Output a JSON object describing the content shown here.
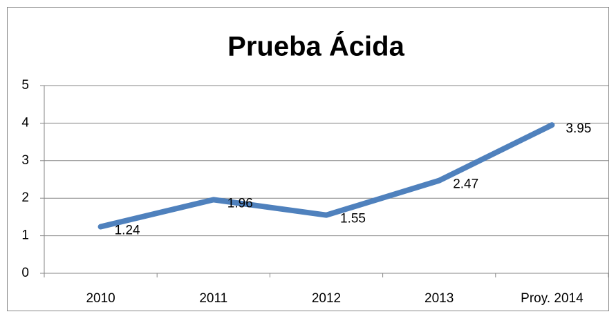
{
  "chart_data": {
    "type": "line",
    "title": "Prueba Ácida",
    "categories": [
      "2010",
      "2011",
      "2012",
      "2013",
      "Proy. 2014"
    ],
    "series": [
      {
        "name": "Prueba Ácida",
        "color": "#4f81bd",
        "values": [
          1.24,
          1.96,
          1.55,
          2.47,
          3.95
        ]
      }
    ],
    "ylim": [
      0,
      5
    ],
    "yticks": [
      0,
      1,
      2,
      3,
      4,
      5
    ],
    "grid": true
  }
}
